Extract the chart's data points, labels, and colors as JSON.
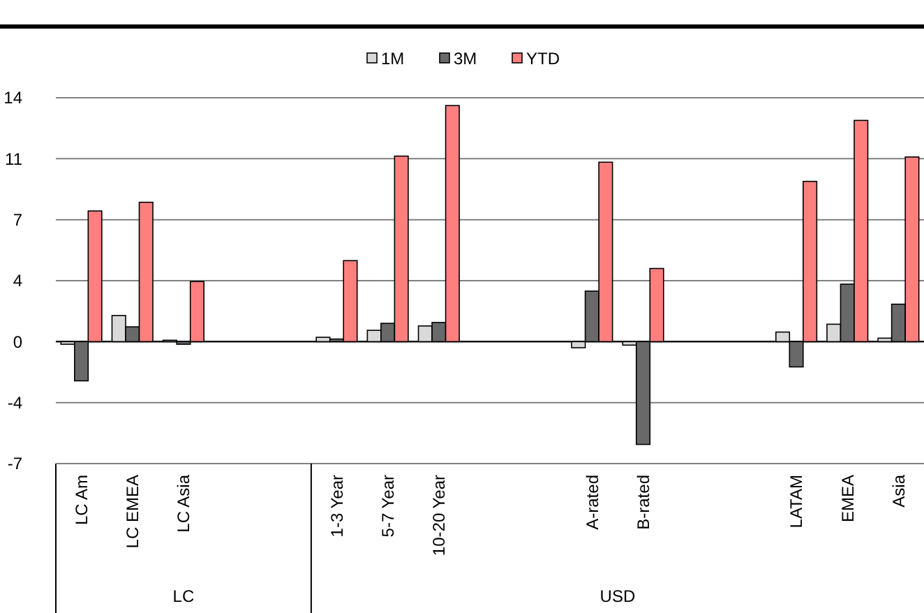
{
  "chart_data": {
    "type": "bar",
    "categories": [
      "LC Am",
      "LC EMEA",
      "LC Asia",
      null,
      null,
      "1-3 Year",
      "5-7 Year",
      "10-20 Year",
      null,
      null,
      "A-rated",
      "B-rated",
      null,
      null,
      "LATAM",
      "EMEA",
      "Asia"
    ],
    "series": [
      {
        "name": "1M",
        "color": "#d9d9d9",
        "values": [
          -0.15,
          1.5,
          0.08,
          null,
          null,
          0.25,
          0.65,
          0.9,
          null,
          null,
          -0.35,
          -0.2,
          null,
          null,
          0.55,
          1.0,
          0.2
        ]
      },
      {
        "name": "3M",
        "color": "#696969",
        "values": [
          -2.25,
          0.85,
          -0.15,
          null,
          null,
          0.15,
          1.05,
          1.1,
          null,
          null,
          2.9,
          -5.9,
          null,
          null,
          -1.45,
          3.3,
          2.15
        ]
      },
      {
        "name": "YTD",
        "color": "#ff7f7f",
        "values": [
          7.5,
          8.0,
          3.45,
          null,
          null,
          4.65,
          10.65,
          13.55,
          null,
          null,
          10.3,
          4.2,
          null,
          null,
          9.2,
          12.7,
          10.6
        ]
      }
    ],
    "ylim": [
      -7,
      14
    ],
    "yticks": [
      -7,
      {
        "value": -3.5,
        "label": "-4"
      },
      0,
      {
        "value": 3.5,
        "label": "4"
      },
      7,
      {
        "value": 10.5,
        "label": "11"
      },
      14
    ],
    "grid": "y",
    "legend": "top",
    "annotations": [
      "LC",
      "USD"
    ]
  }
}
